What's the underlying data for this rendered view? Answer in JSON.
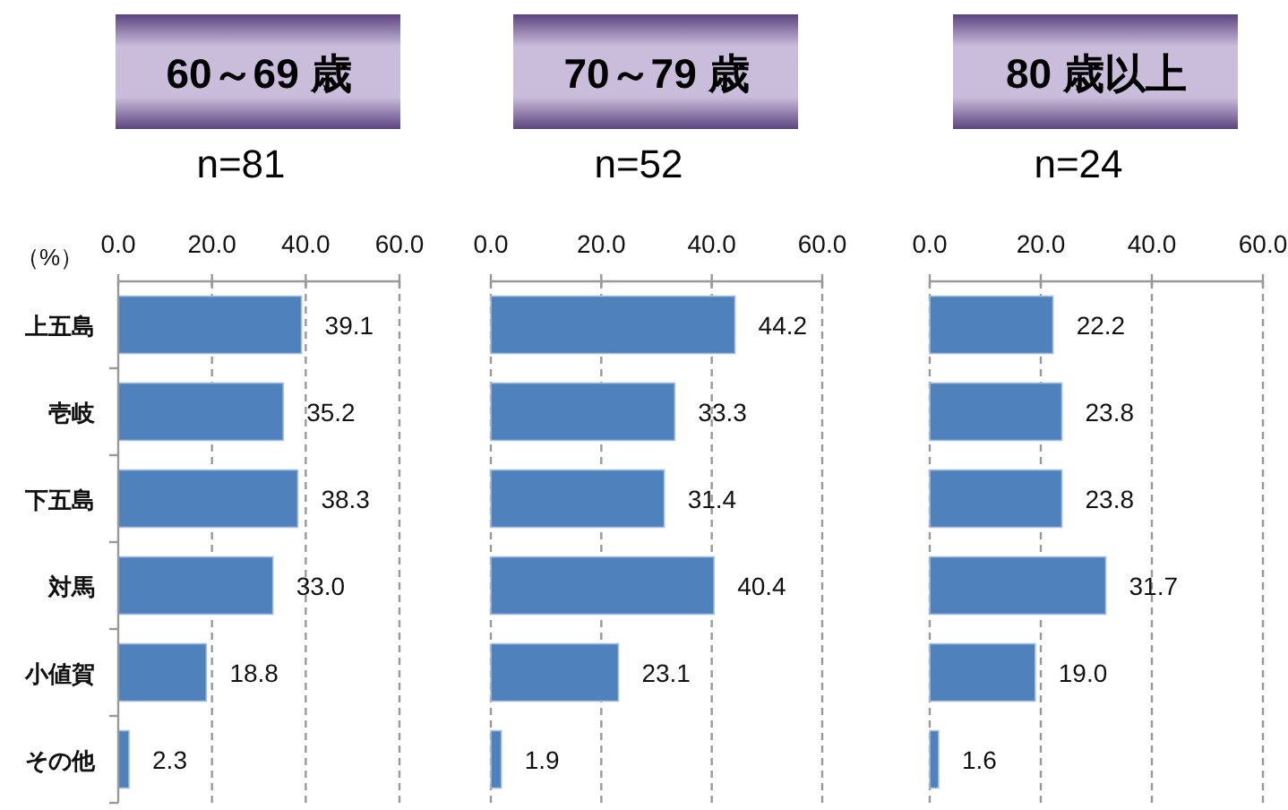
{
  "chart_data": [
    {
      "type": "bar",
      "orientation": "horizontal",
      "title": "60～69 歳",
      "subtitle": "n=81",
      "xlabel": "（%）",
      "categories": [
        "上五島",
        "壱岐",
        "下五島",
        "対馬",
        "小値賀",
        "その他"
      ],
      "values": [
        39.1,
        35.2,
        38.3,
        33.0,
        18.8,
        2.3
      ],
      "value_labels": [
        "39.1",
        "35.2",
        "38.3",
        "33.0",
        "18.8",
        "2.3"
      ],
      "color": "#4f81bd",
      "xlim": [
        0,
        60
      ],
      "xticks": [
        {
          "value": 0,
          "label": "0.0"
        },
        {
          "value": 20,
          "label": "20.0"
        },
        {
          "value": 40,
          "label": "40.0"
        },
        {
          "value": 60,
          "label": "60.0"
        }
      ],
      "grid": "x"
    },
    {
      "type": "bar",
      "orientation": "horizontal",
      "title": "70～79 歳",
      "subtitle": "n=52",
      "categories": [
        null,
        null,
        null,
        null,
        null,
        null
      ],
      "values": [
        44.2,
        33.3,
        31.4,
        40.4,
        23.1,
        1.9
      ],
      "value_labels": [
        "44.2",
        "33.3",
        "31.4",
        "40.4",
        "23.1",
        "1.9"
      ],
      "color": "#4f81bd",
      "xlim": [
        0,
        60
      ],
      "xticks": [
        {
          "value": 0,
          "label": "0.0"
        },
        {
          "value": 20,
          "label": "20.0"
        },
        {
          "value": 40,
          "label": "40.0"
        },
        {
          "value": 60,
          "label": "60.0"
        }
      ],
      "grid": "x",
      "tick_labels": "x"
    },
    {
      "type": "bar",
      "orientation": "horizontal",
      "title": "80 歳以上",
      "subtitle": "n=24",
      "categories": [
        null,
        null,
        null,
        null,
        null,
        null
      ],
      "values": [
        22.2,
        23.8,
        23.8,
        31.7,
        19.0,
        1.6
      ],
      "value_labels": [
        "22.2",
        "23.8",
        "23.8",
        "31.7",
        "19.0",
        "1.6"
      ],
      "color": "#4f81bd",
      "xlim": [
        0,
        60
      ],
      "xticks": [
        {
          "value": 0,
          "label": "0.0"
        },
        {
          "value": 20,
          "label": "20.0"
        },
        {
          "value": 40,
          "label": "40.0"
        },
        {
          "value": 60,
          "label": "60.0"
        }
      ],
      "grid": "x",
      "tick_labels": "x"
    }
  ]
}
